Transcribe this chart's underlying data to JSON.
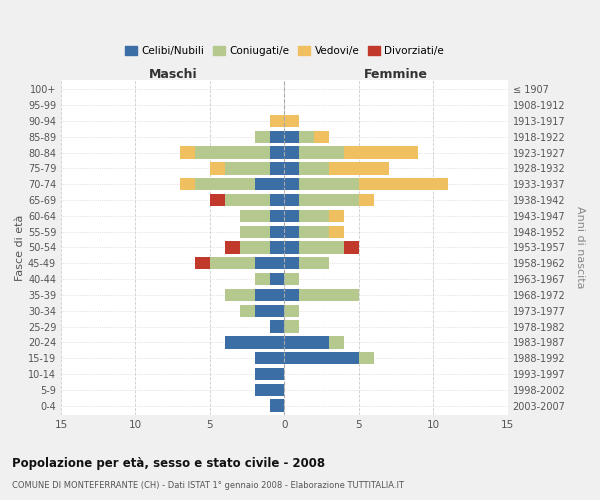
{
  "age_groups": [
    "100+",
    "95-99",
    "90-94",
    "85-89",
    "80-84",
    "75-79",
    "70-74",
    "65-69",
    "60-64",
    "55-59",
    "50-54",
    "45-49",
    "40-44",
    "35-39",
    "30-34",
    "25-29",
    "20-24",
    "15-19",
    "10-14",
    "5-9",
    "0-4"
  ],
  "birth_years": [
    "≤ 1907",
    "1908-1912",
    "1913-1917",
    "1918-1922",
    "1923-1927",
    "1928-1932",
    "1933-1937",
    "1938-1942",
    "1943-1947",
    "1948-1952",
    "1953-1957",
    "1958-1962",
    "1963-1967",
    "1968-1972",
    "1973-1977",
    "1978-1982",
    "1983-1987",
    "1988-1992",
    "1993-1997",
    "1998-2002",
    "2003-2007"
  ],
  "maschi": {
    "celibi": [
      0,
      0,
      0,
      1,
      1,
      1,
      2,
      1,
      1,
      1,
      1,
      2,
      1,
      2,
      2,
      1,
      4,
      2,
      2,
      2,
      1
    ],
    "coniugati": [
      0,
      0,
      0,
      1,
      5,
      3,
      4,
      3,
      2,
      2,
      2,
      3,
      1,
      2,
      1,
      0,
      0,
      0,
      0,
      0,
      0
    ],
    "vedovi": [
      0,
      0,
      1,
      0,
      1,
      1,
      1,
      0,
      0,
      0,
      0,
      0,
      0,
      0,
      0,
      0,
      0,
      0,
      0,
      0,
      0
    ],
    "divorziati": [
      0,
      0,
      0,
      0,
      0,
      0,
      0,
      1,
      0,
      0,
      1,
      1,
      0,
      0,
      0,
      0,
      0,
      0,
      0,
      0,
      0
    ]
  },
  "femmine": {
    "nubili": [
      0,
      0,
      0,
      1,
      1,
      1,
      1,
      1,
      1,
      1,
      1,
      1,
      0,
      1,
      0,
      0,
      3,
      5,
      0,
      0,
      0
    ],
    "coniugate": [
      0,
      0,
      0,
      1,
      3,
      2,
      4,
      4,
      2,
      2,
      3,
      2,
      1,
      4,
      1,
      1,
      1,
      1,
      0,
      0,
      0
    ],
    "vedove": [
      0,
      0,
      1,
      1,
      5,
      4,
      6,
      1,
      1,
      1,
      0,
      0,
      0,
      0,
      0,
      0,
      0,
      0,
      0,
      0,
      0
    ],
    "divorziate": [
      0,
      0,
      0,
      0,
      0,
      0,
      0,
      0,
      0,
      0,
      1,
      0,
      0,
      0,
      0,
      0,
      0,
      0,
      0,
      0,
      0
    ]
  },
  "colors": {
    "celibi_nubili": "#3a6ea5",
    "coniugati": "#b5c98e",
    "vedovi": "#f0c060",
    "divorziati": "#c0392b"
  },
  "xlim": 15,
  "title": "Popolazione per età, sesso e stato civile - 2008",
  "subtitle": "COMUNE DI MONTEFERRANTE (CH) - Dati ISTAT 1° gennaio 2008 - Elaborazione TUTTITALIA.IT",
  "ylabel_left": "Fasce di età",
  "ylabel_right": "Anni di nascita",
  "xlabel_maschi": "Maschi",
  "xlabel_femmine": "Femmine",
  "legend_labels": [
    "Celibi/Nubili",
    "Coniugati/e",
    "Vedovi/e",
    "Divorziati/e"
  ],
  "bg_color": "#f0f0f0",
  "plot_bg_color": "#ffffff"
}
